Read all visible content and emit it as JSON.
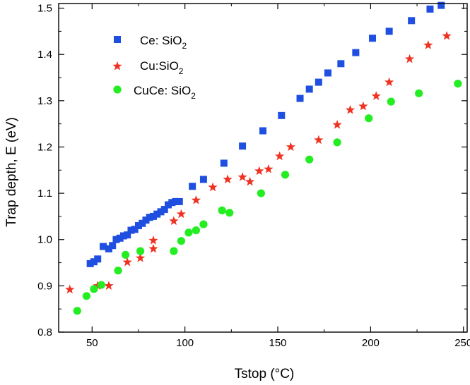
{
  "chart_data": {
    "type": "scatter",
    "title": "",
    "xlabel": "Tstop (°C)",
    "ylabel": "Trap depth, E (eV)",
    "xlim": [
      32,
      252
    ],
    "ylim": [
      0.8,
      1.51
    ],
    "xticks": [
      50,
      100,
      150,
      200,
      250
    ],
    "yticks": [
      0.8,
      0.9,
      1.0,
      1.1,
      1.2,
      1.3,
      1.4,
      1.5
    ],
    "ytick_labels": [
      "0.8",
      "0.9",
      "1.0",
      "1.1",
      "1.2",
      "1.3",
      "1.4",
      "1.5"
    ],
    "grid": false,
    "legend_position": "top-left",
    "series": [
      {
        "name": "Ce: SiO2",
        "name_main": "Ce: SiO",
        "name_sub": "2",
        "marker": "square",
        "color": "#1f4fe0",
        "x": [
          49,
          51,
          53,
          56,
          59,
          61,
          63,
          65,
          67,
          69,
          71,
          73,
          75,
          77,
          79,
          81,
          83,
          85,
          87,
          89,
          91,
          93,
          95,
          97,
          104,
          110,
          121,
          131,
          142,
          152,
          162,
          167,
          172,
          177,
          184,
          192,
          201,
          210,
          222,
          232,
          238
        ],
        "y": [
          0.948,
          0.952,
          0.958,
          0.985,
          0.98,
          0.987,
          1.0,
          1.003,
          1.008,
          1.01,
          1.02,
          1.022,
          1.03,
          1.035,
          1.042,
          1.048,
          1.05,
          1.055,
          1.06,
          1.065,
          1.075,
          1.08,
          1.082,
          1.082,
          1.115,
          1.13,
          1.165,
          1.202,
          1.235,
          1.268,
          1.305,
          1.325,
          1.34,
          1.36,
          1.38,
          1.404,
          1.435,
          1.45,
          1.473,
          1.498,
          1.506
        ]
      },
      {
        "name": "Cu:SiO2",
        "name_main": "Cu:SiO",
        "name_sub": "2",
        "marker": "star",
        "color": "#ee3322",
        "x": [
          38,
          53,
          59,
          69,
          76,
          83,
          83,
          94,
          98,
          106,
          115,
          123,
          131,
          135,
          140,
          145,
          151,
          157,
          172,
          182,
          189,
          196,
          203,
          210,
          221,
          231,
          241
        ],
        "y": [
          0.892,
          0.9,
          0.9,
          0.951,
          0.96,
          0.98,
          0.998,
          1.04,
          1.055,
          1.085,
          1.113,
          1.13,
          1.135,
          1.125,
          1.148,
          1.152,
          1.18,
          1.2,
          1.215,
          1.248,
          1.28,
          1.288,
          1.31,
          1.34,
          1.39,
          1.42,
          1.44
        ]
      },
      {
        "name": "CuCe: SiO2",
        "name_main": "CuCe: SiO",
        "name_sub": "2",
        "marker": "circle",
        "color": "#22ee22",
        "x": [
          42,
          47,
          51,
          55,
          64,
          68,
          76,
          94,
          98,
          102,
          106,
          110,
          120,
          124,
          141,
          154,
          167,
          182,
          199,
          211,
          226,
          247
        ],
        "y": [
          0.846,
          0.878,
          0.893,
          0.902,
          0.933,
          0.967,
          0.975,
          0.975,
          0.997,
          1.015,
          1.02,
          1.033,
          1.063,
          1.058,
          1.1,
          1.14,
          1.173,
          1.21,
          1.262,
          1.298,
          1.316,
          1.337
        ]
      }
    ]
  }
}
